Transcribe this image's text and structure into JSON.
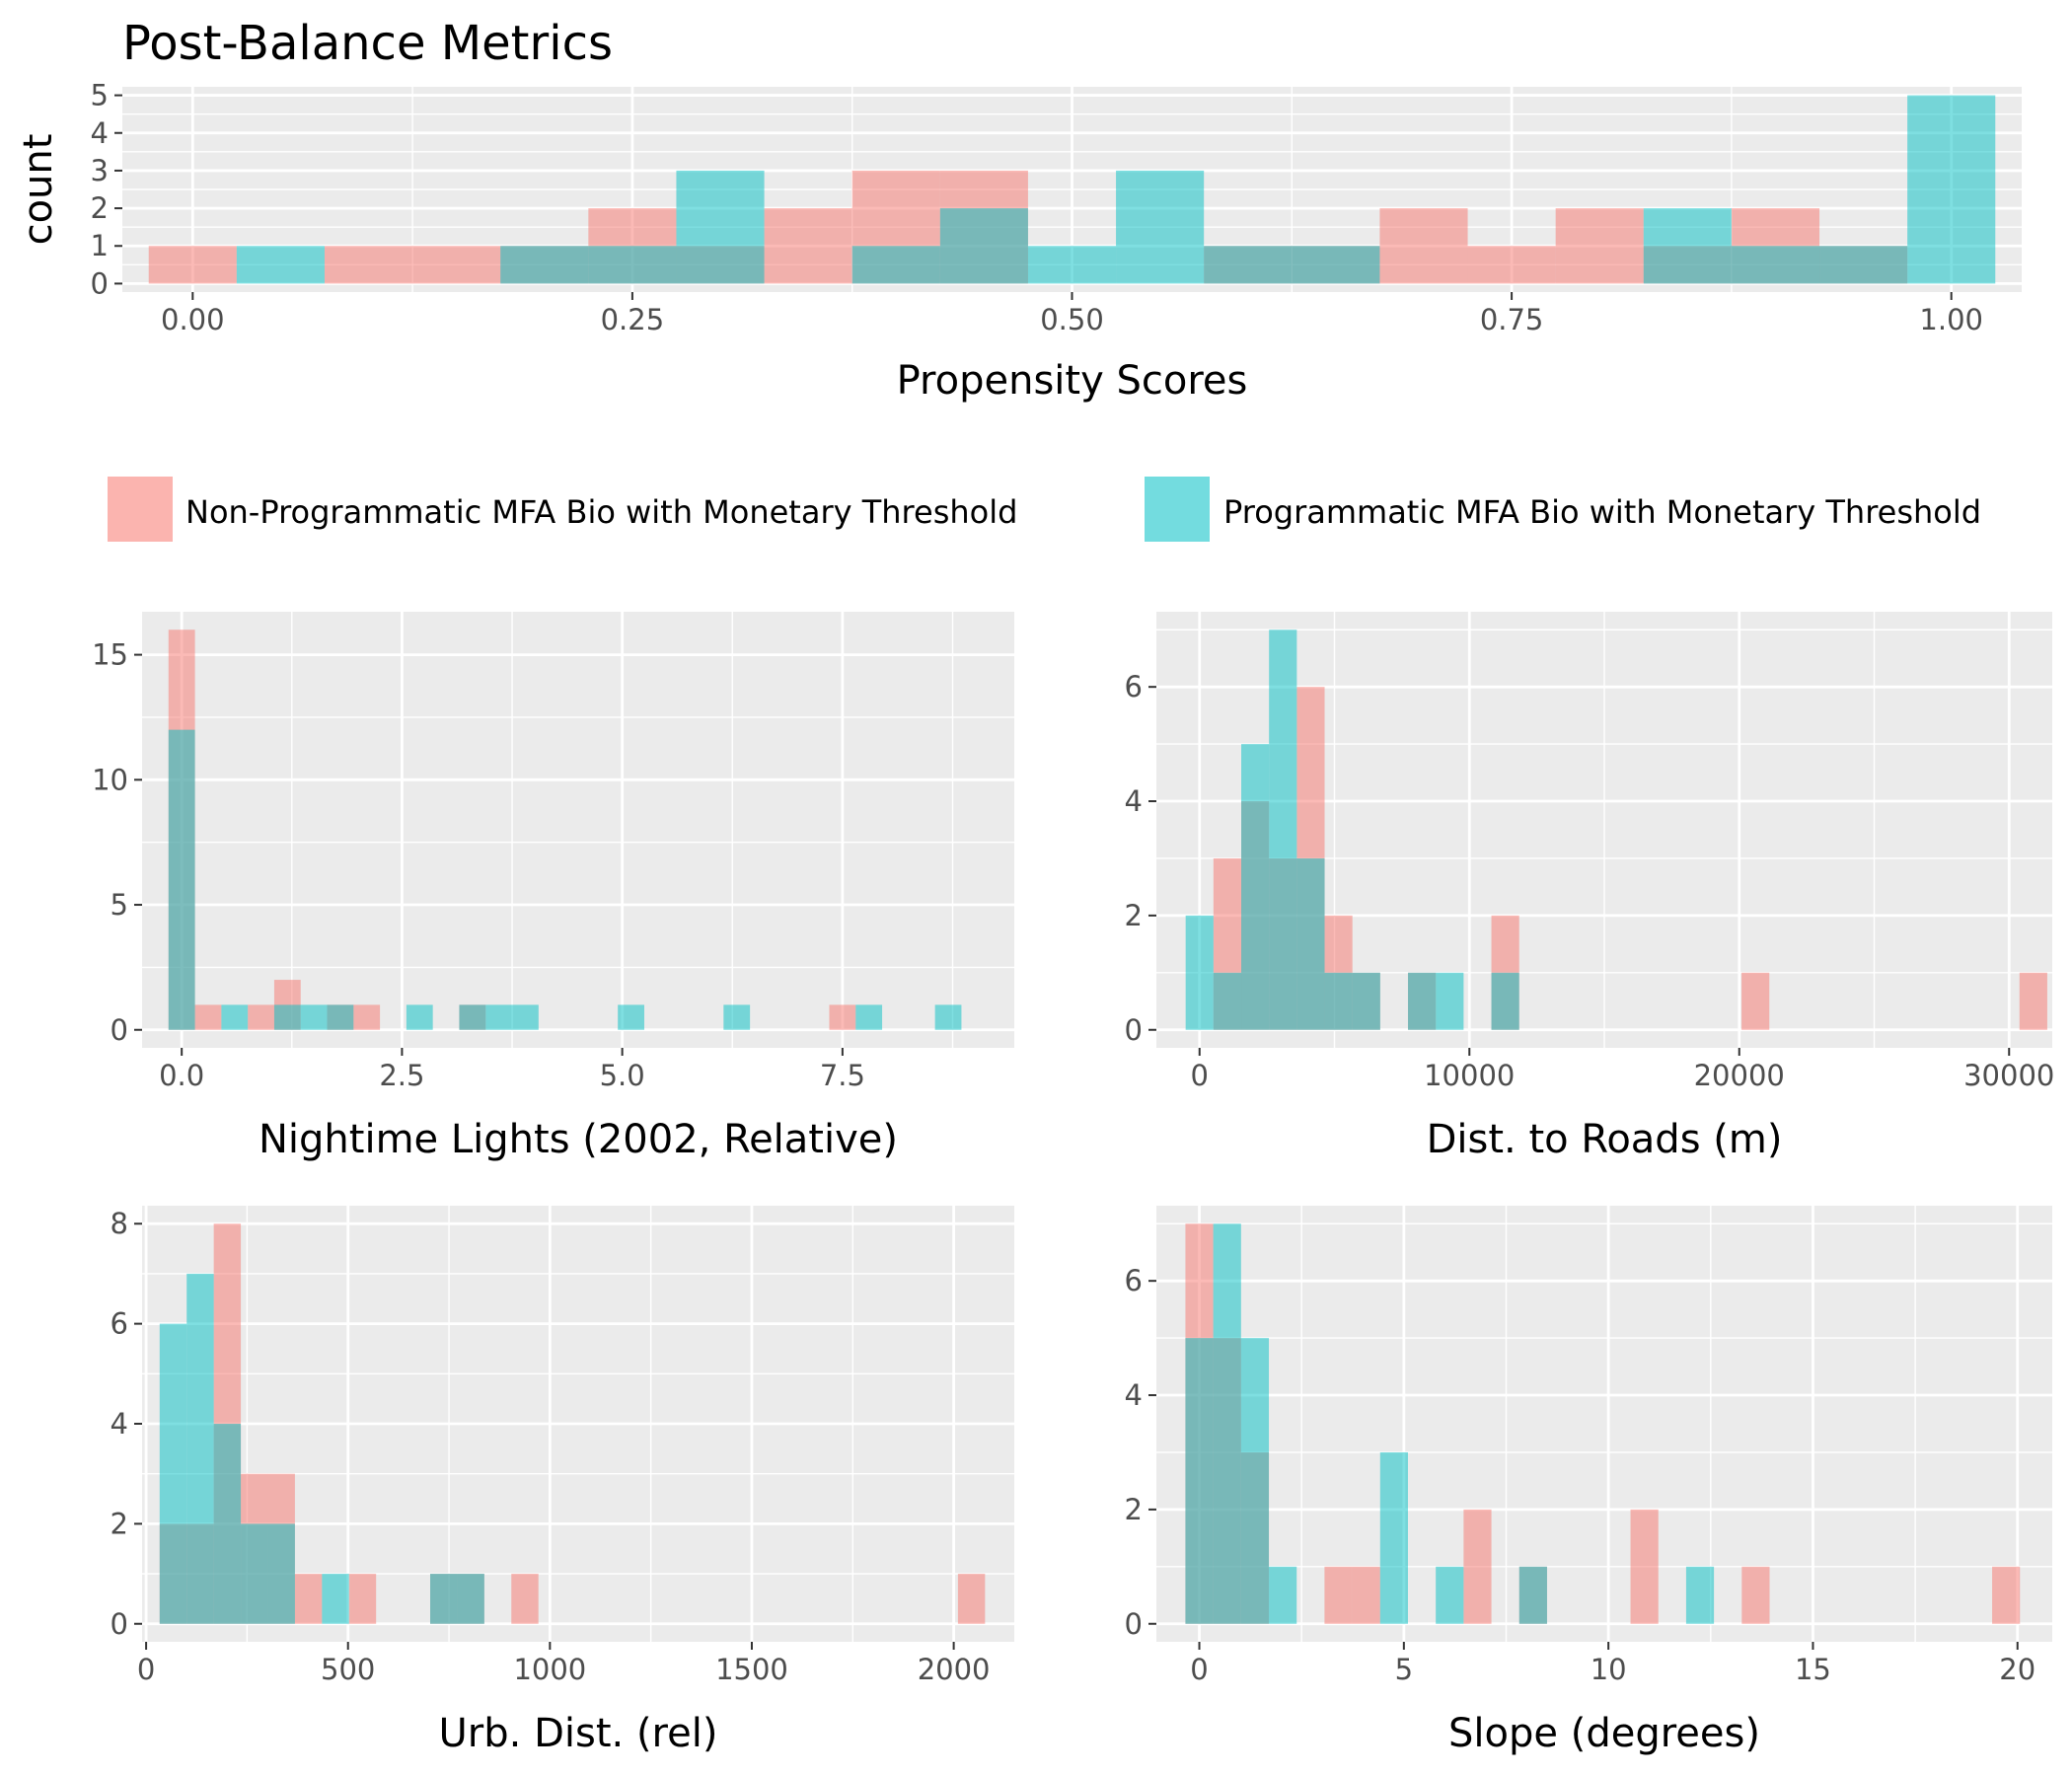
{
  "title": "Post-Balance Metrics",
  "colors": {
    "non_programmatic": "#F8766D",
    "programmatic": "#00BFC4",
    "panel_bg": "#EBEBEB",
    "grid": "#FFFFFF"
  },
  "legend": {
    "items": [
      {
        "label": "Non-Programmatic MFA Bio with Monetary Threshold",
        "color": "#F8766D"
      },
      {
        "label": "Programmatic MFA Bio with Monetary Threshold",
        "color": "#00BFC4"
      }
    ]
  },
  "chart_data": [
    {
      "type": "histogram",
      "xlabel": "Propensity Scores",
      "ylabel": "count",
      "xlim": [
        -0.04,
        1.04
      ],
      "ylim": [
        0,
        5
      ],
      "xticks": [
        0,
        0.25,
        0.5,
        0.75,
        1.0
      ],
      "xtick_labels": [
        "0.00",
        "0.25",
        "0.50",
        "0.75",
        "1.00"
      ],
      "yticks": [
        0,
        1,
        2,
        3,
        4,
        5
      ],
      "ytick_labels": [
        "0",
        "1",
        "2",
        "3",
        "4",
        "5"
      ],
      "bin_width": 0.05,
      "series": [
        {
          "name": "Non-Programmatic MFA Bio with Monetary Threshold",
          "x": [
            0.0,
            0.1,
            0.15,
            0.2,
            0.25,
            0.3,
            0.35,
            0.4,
            0.45,
            0.6,
            0.65,
            0.7,
            0.75,
            0.8,
            0.85,
            0.9,
            0.95
          ],
          "values": [
            1,
            1,
            1,
            1,
            2,
            1,
            2,
            3,
            3,
            1,
            1,
            2,
            1,
            2,
            1,
            2,
            1
          ]
        },
        {
          "name": "Programmatic MFA Bio with Monetary Threshold",
          "x": [
            0.05,
            0.2,
            0.25,
            0.3,
            0.4,
            0.45,
            0.5,
            0.55,
            0.6,
            0.65,
            0.85,
            0.9,
            0.95,
            1.0
          ],
          "values": [
            1,
            1,
            1,
            3,
            1,
            2,
            1,
            3,
            1,
            1,
            2,
            1,
            1,
            5
          ]
        }
      ]
    },
    {
      "type": "histogram",
      "xlabel": "Nightime Lights (2002, Relative)",
      "xlim": [
        -0.45,
        9.45
      ],
      "ylim": [
        0,
        16
      ],
      "xticks": [
        0,
        2.5,
        5,
        7.5
      ],
      "xtick_labels": [
        "0.0",
        "2.5",
        "5.0",
        "7.5"
      ],
      "yticks": [
        0,
        5,
        10,
        15
      ],
      "ytick_labels": [
        "0",
        "5",
        "10",
        "15"
      ],
      "bin_width": 0.3,
      "series": [
        {
          "name": "Non-Programmatic MFA Bio with Monetary Threshold",
          "x": [
            0.0,
            0.3,
            0.9,
            1.2,
            1.8,
            2.1,
            3.3,
            7.5
          ],
          "values": [
            16,
            1,
            1,
            2,
            1,
            1,
            1,
            1
          ]
        },
        {
          "name": "Programmatic MFA Bio with Monetary Threshold",
          "x": [
            0.0,
            0.6,
            1.2,
            1.5,
            1.8,
            2.7,
            3.3,
            3.6,
            3.9,
            5.1,
            6.3,
            7.8,
            8.7
          ],
          "values": [
            12,
            1,
            1,
            1,
            1,
            1,
            1,
            1,
            1,
            1,
            1,
            1,
            1
          ]
        }
      ]
    },
    {
      "type": "histogram",
      "xlabel": "Dist. to Roads (m)",
      "xlim": [
        -1600,
        31600
      ],
      "ylim": [
        0,
        7
      ],
      "xticks": [
        0,
        10000,
        20000,
        30000
      ],
      "xtick_labels": [
        "0",
        "10000",
        "20000",
        "30000"
      ],
      "yticks": [
        0,
        2,
        4,
        6
      ],
      "ytick_labels": [
        "0",
        "2",
        "4",
        "6"
      ],
      "bin_width": 1030,
      "series": [
        {
          "name": "Non-Programmatic MFA Bio with Monetary Threshold",
          "x": [
            1030,
            2060,
            3090,
            4120,
            5150,
            6180,
            8240,
            11330,
            20600,
            30900
          ],
          "values": [
            3,
            4,
            3,
            6,
            2,
            1,
            1,
            2,
            1,
            1
          ]
        },
        {
          "name": "Programmatic MFA Bio with Monetary Threshold",
          "x": [
            0,
            1030,
            2060,
            3090,
            4120,
            5150,
            6180,
            8240,
            9270,
            11330
          ],
          "values": [
            2,
            1,
            5,
            7,
            3,
            1,
            1,
            1,
            1,
            1
          ]
        }
      ]
    },
    {
      "type": "histogram",
      "xlabel": "Urb. Dist. (rel)",
      "xlim": [
        -10,
        2150
      ],
      "ylim": [
        0,
        8
      ],
      "xticks": [
        0,
        500,
        1000,
        1500,
        2000
      ],
      "xtick_labels": [
        "0",
        "500",
        "1000",
        "1500",
        "2000"
      ],
      "yticks": [
        0,
        2,
        4,
        6,
        8
      ],
      "ytick_labels": [
        "0",
        "2",
        "4",
        "6",
        "8"
      ],
      "bin_width": 67,
      "series": [
        {
          "name": "Non-Programmatic MFA Bio with Monetary Threshold",
          "x": [
            67,
            134,
            201,
            268,
            335,
            402,
            536,
            737,
            804,
            938,
            2044
          ],
          "values": [
            2,
            2,
            8,
            3,
            3,
            1,
            1,
            1,
            1,
            1,
            1
          ]
        },
        {
          "name": "Programmatic MFA Bio with Monetary Threshold",
          "x": [
            67,
            134,
            201,
            268,
            335,
            469,
            737,
            804
          ],
          "values": [
            6,
            7,
            4,
            2,
            2,
            1,
            1,
            1
          ]
        }
      ]
    },
    {
      "type": "histogram",
      "xlabel": "Slope (degrees)",
      "xlim": [
        -1.05,
        20.85
      ],
      "ylim": [
        0,
        7
      ],
      "xticks": [
        0,
        5,
        10,
        15,
        20
      ],
      "xtick_labels": [
        "0",
        "5",
        "10",
        "15",
        "20"
      ],
      "yticks": [
        0,
        2,
        4,
        6
      ],
      "ytick_labels": [
        "0",
        "2",
        "4",
        "6"
      ],
      "bin_width": 0.68,
      "series": [
        {
          "name": "Non-Programmatic MFA Bio with Monetary Threshold",
          "x": [
            0.0,
            0.68,
            1.36,
            3.4,
            4.08,
            6.8,
            8.16,
            10.88,
            13.6,
            19.72
          ],
          "values": [
            7,
            5,
            3,
            1,
            1,
            2,
            1,
            2,
            1,
            1
          ]
        },
        {
          "name": "Programmatic MFA Bio with Monetary Threshold",
          "x": [
            0.0,
            0.68,
            1.36,
            2.04,
            4.76,
            6.12,
            8.16,
            12.24
          ],
          "values": [
            5,
            7,
            5,
            1,
            3,
            1,
            1,
            1
          ]
        }
      ]
    }
  ]
}
